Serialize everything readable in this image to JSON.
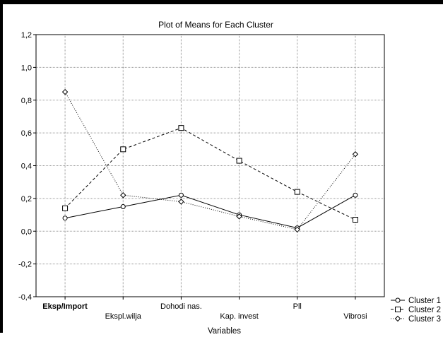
{
  "chart_data": {
    "type": "line",
    "title": "Plot of Means for Each Cluster",
    "xlabel": "Variables",
    "ylabel": "",
    "categories": [
      "Eksp/Import",
      "Ekspl.wilja",
      "Dohodi nas.",
      "Kap. invest",
      "Pll",
      "Vibrosi"
    ],
    "bold_categories": [
      "Eksp/Import"
    ],
    "ylim": [
      -0.4,
      1.2
    ],
    "yticks": [
      "1,2",
      "1,0",
      "0,8",
      "0,6",
      "0,4",
      "0,2",
      "0,0",
      "-0,2",
      "-0,4"
    ],
    "grid": true,
    "legend_position": "bottom-right",
    "series": [
      {
        "name": "Cluster 1",
        "values": [
          0.08,
          0.15,
          0.22,
          0.1,
          0.02,
          0.22
        ],
        "marker": "circle",
        "line": "solid"
      },
      {
        "name": "Cluster 2",
        "values": [
          0.14,
          0.5,
          0.63,
          0.43,
          0.24,
          0.07
        ],
        "marker": "square",
        "line": "dashed"
      },
      {
        "name": "Cluster 3",
        "values": [
          0.85,
          0.22,
          0.18,
          0.09,
          0.01,
          0.47
        ],
        "marker": "diamond",
        "line": "dotted"
      }
    ]
  }
}
